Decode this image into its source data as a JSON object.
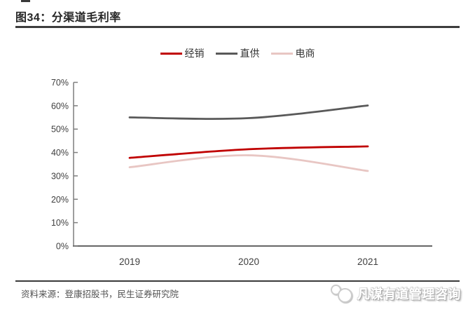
{
  "header": {
    "title": "图34：分渠道毛利率"
  },
  "footer": {
    "source": "资料来源：登康招股书，民生证券研究院",
    "watermark": "凡谋有道管理咨询"
  },
  "chart_data": {
    "type": "line",
    "title": "分渠道毛利率",
    "categories": [
      "2019",
      "2020",
      "2021"
    ],
    "series": [
      {
        "name": "经销",
        "color": "#c00000",
        "values": [
          37.7,
          41.4,
          42.6
        ]
      },
      {
        "name": "直供",
        "color": "#595959",
        "values": [
          55.0,
          54.7,
          60.1
        ]
      },
      {
        "name": "电商",
        "color": "#e8c6c3",
        "values": [
          33.7,
          38.8,
          32.1
        ]
      }
    ],
    "xlabel": "",
    "ylabel": "",
    "ylim": [
      0,
      70
    ],
    "ytick_step": 10,
    "ytick_labels": [
      "0%",
      "10%",
      "20%",
      "30%",
      "40%",
      "50%",
      "60%",
      "70%"
    ],
    "grid": false,
    "legend_position": "top",
    "line_style": "smooth",
    "axis_color": "#7f7f7f"
  }
}
